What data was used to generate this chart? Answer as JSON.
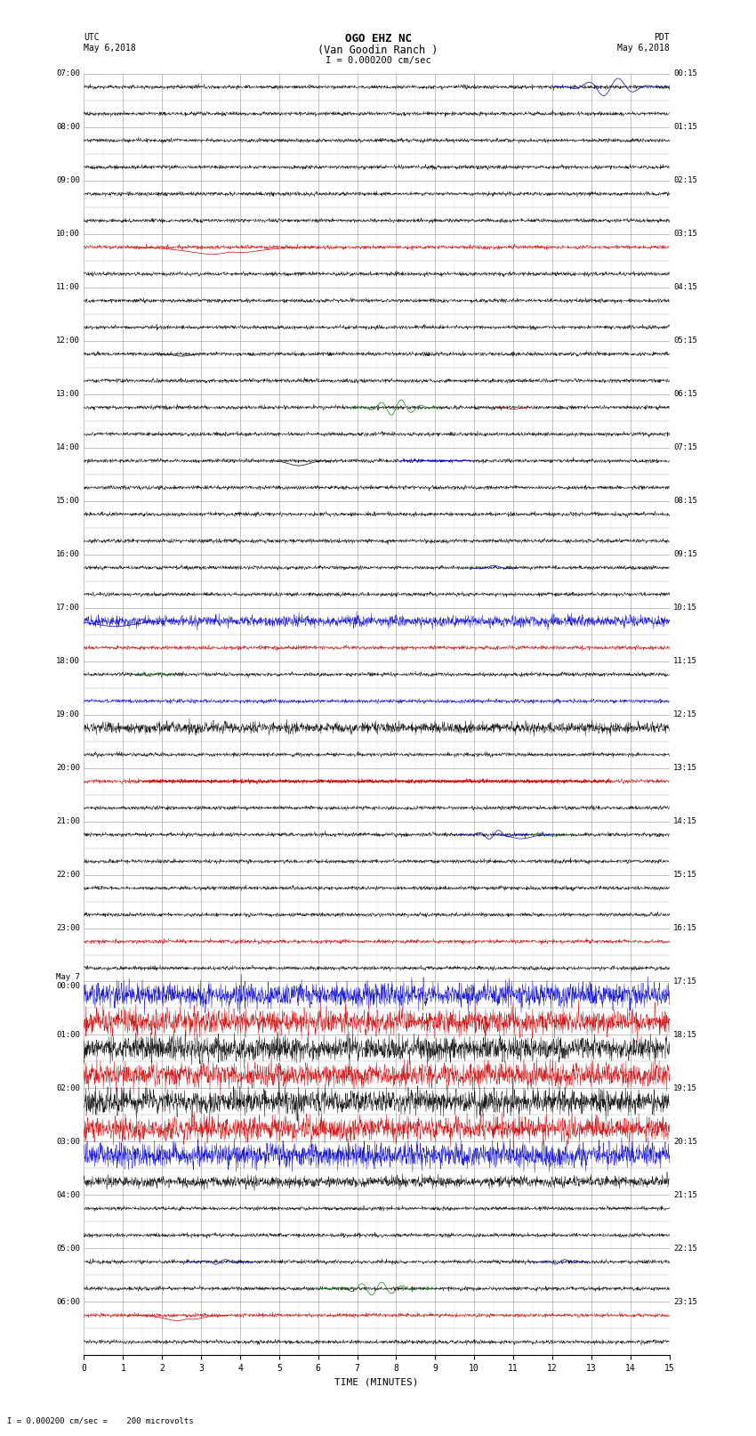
{
  "title_line1": "OGO EHZ NC",
  "title_line2": "(Van Goodin Ranch )",
  "scale_text": "I = 0.000200 cm/sec",
  "bottom_text": "I = 0.000200 cm/sec =    200 microvolts",
  "utc_label": "UTC\nMay 6,2018",
  "pdt_label": "PDT\nMay 6,2018",
  "xlabel": "TIME (MINUTES)",
  "background_color": "#ffffff",
  "grid_color": "#aaaaaa",
  "fig_width": 8.5,
  "fig_height": 16.13,
  "num_rows": 48,
  "left_labels": [
    "07:00",
    "",
    "08:00",
    "",
    "09:00",
    "",
    "10:00",
    "",
    "11:00",
    "",
    "12:00",
    "",
    "13:00",
    "",
    "14:00",
    "",
    "15:00",
    "",
    "16:00",
    "",
    "17:00",
    "",
    "18:00",
    "",
    "19:00",
    "",
    "20:00",
    "",
    "21:00",
    "",
    "22:00",
    "",
    "23:00",
    "",
    "May 7\n00:00",
    "",
    "01:00",
    "",
    "02:00",
    "",
    "03:00",
    "",
    "04:00",
    "",
    "05:00",
    "",
    "06:00",
    ""
  ],
  "right_labels": [
    "00:15",
    "",
    "01:15",
    "",
    "02:15",
    "",
    "03:15",
    "",
    "04:15",
    "",
    "05:15",
    "",
    "06:15",
    "",
    "07:15",
    "",
    "08:15",
    "",
    "09:15",
    "",
    "10:15",
    "",
    "11:15",
    "",
    "12:15",
    "",
    "13:15",
    "",
    "14:15",
    "",
    "15:15",
    "",
    "16:15",
    "",
    "17:15",
    "",
    "18:15",
    "",
    "19:15",
    "",
    "20:15",
    "",
    "21:15",
    "",
    "22:15",
    "",
    "23:15",
    ""
  ]
}
